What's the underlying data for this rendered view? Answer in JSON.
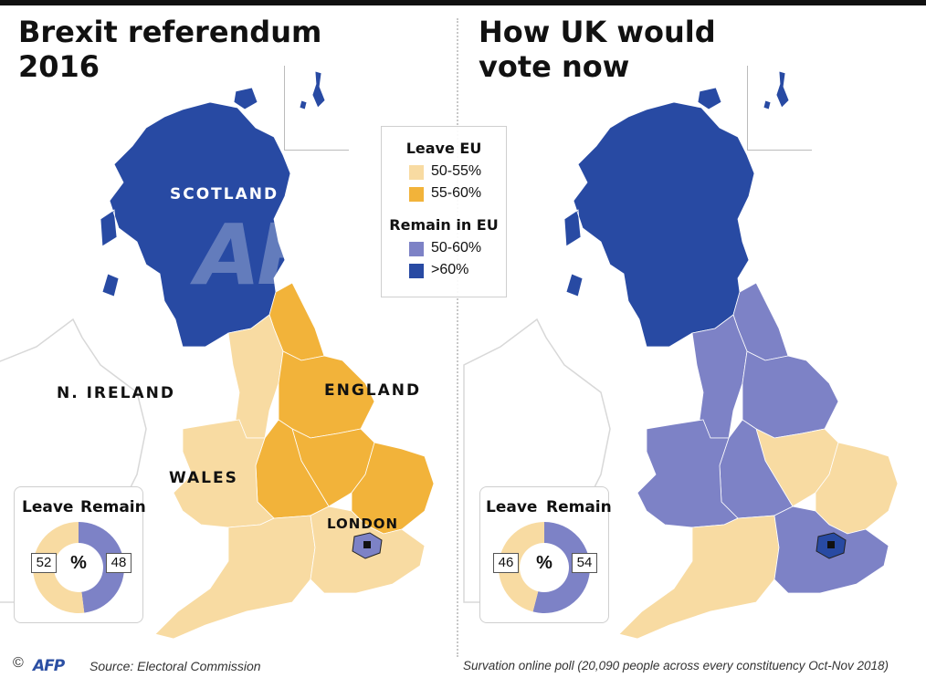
{
  "colors": {
    "leave_50_55": "#f8dba2",
    "leave_55_60": "#f2b33a",
    "remain_50_60": "#7d82c6",
    "remain_gt60": "#284aa3",
    "land_outline": "#d8d8d8"
  },
  "left": {
    "title_line1": "Brexit referendum",
    "title_line2": "2016",
    "labels": {
      "scotland": "SCOTLAND",
      "n_ireland": "N. IRELAND",
      "england": "ENGLAND",
      "wales": "WALES",
      "london": "LONDON"
    },
    "result": {
      "leave_label": "Leave",
      "remain_label": "Remain",
      "leave": 52,
      "remain": 48,
      "unit": "%"
    },
    "regions": {
      "scotland": "remain_gt60",
      "n_ireland": "remain_50_60",
      "north_east": "leave_55_60",
      "north_west": "leave_50_55",
      "yorkshire": "leave_55_60",
      "east_midlands": "leave_55_60",
      "west_midlands": "leave_55_60",
      "east_of_england": "leave_55_60",
      "wales": "leave_50_55",
      "south_west": "leave_50_55",
      "south_east": "leave_50_55",
      "london": "remain_50_60"
    }
  },
  "right": {
    "title_line1": "How UK would",
    "title_line2": "vote now",
    "result": {
      "leave_label": "Leave",
      "remain_label": "Remain",
      "leave": 46,
      "remain": 54,
      "unit": "%"
    },
    "regions": {
      "scotland": "remain_gt60",
      "n_ireland": "remain_50_60",
      "north_east": "remain_50_60",
      "north_west": "remain_50_60",
      "yorkshire": "remain_50_60",
      "east_midlands": "leave_50_55",
      "west_midlands": "remain_50_60",
      "east_of_england": "leave_50_55",
      "wales": "remain_50_60",
      "south_west": "leave_50_55",
      "south_east": "remain_50_60",
      "london": "remain_gt60"
    }
  },
  "legend": {
    "leave_heading": "Leave EU",
    "leave_items": [
      {
        "label": "50-55%",
        "color_key": "leave_50_55"
      },
      {
        "label": "55-60%",
        "color_key": "leave_55_60"
      }
    ],
    "remain_heading": "Remain in EU",
    "remain_items": [
      {
        "label": "50-60%",
        "color_key": "remain_50_60"
      },
      {
        "label": ">60%",
        "color_key": "remain_gt60"
      }
    ]
  },
  "footer": {
    "copyright": "©",
    "agency": "AFP",
    "source_left": "Source: Electoral Commission",
    "source_right": "Survation online poll (20,090 people across every constituency Oct-Nov 2018)"
  },
  "watermark": "AFP"
}
